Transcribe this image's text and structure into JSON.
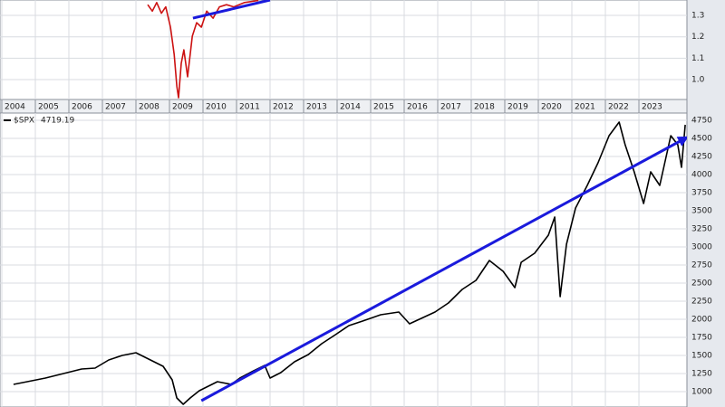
{
  "chart_data": [
    {
      "type": "line",
      "xlim": [
        2003.946,
        2024.432
      ],
      "xticks": [
        2004,
        2005,
        2006,
        2007,
        2008,
        2009,
        2010,
        2011,
        2012,
        2013,
        2014,
        2015,
        2016,
        2017,
        2018,
        2019,
        2020,
        2021,
        2022,
        2023
      ],
      "ylim": [
        0.907,
        1.372
      ],
      "yticks": [
        {
          "value": 1,
          "label": "1.0"
        },
        1.1,
        1.2,
        1.3
      ],
      "grid": true,
      "series": [
        {
          "color": "#cc1111",
          "x": [
            2008.35,
            2008.49,
            2008.62,
            2008.76,
            2008.89,
            2009.03,
            2009.14,
            2009.22,
            2009.27,
            2009.35,
            2009.43,
            2009.54,
            2009.68,
            2009.81,
            2009.95,
            2010.11,
            2010.3,
            2010.49,
            2010.7,
            2010.92,
            2011.24,
            2011.65
          ],
          "values": [
            1.35,
            1.32,
            1.36,
            1.31,
            1.34,
            1.245,
            1.118,
            0.97,
            0.915,
            1.076,
            1.139,
            1.013,
            1.203,
            1.266,
            1.245,
            1.32,
            1.287,
            1.34,
            1.35,
            1.34,
            1.36,
            1.37
          ]
        },
        {
          "color": "#1a1adc",
          "x": [
            2009.7,
            2012.0
          ],
          "values": [
            1.287,
            1.372
          ]
        }
      ]
    },
    {
      "type": "line",
      "ylim": [
        787.5,
        4850
      ],
      "yticks": [
        1000,
        1250,
        1500,
        1750,
        2000,
        2250,
        2500,
        2750,
        3000,
        3250,
        3500,
        3750,
        4000,
        4250,
        4500,
        4750
      ],
      "grid": true,
      "legend_name": "$SPX",
      "last_value": 4719.19,
      "series": [
        {
          "color": "#000000",
          "x": [
            2004.35,
            2004.76,
            2005.3,
            2005.84,
            2006.38,
            2006.78,
            2007.19,
            2007.59,
            2008.0,
            2008.27,
            2008.54,
            2008.81,
            2009.08,
            2009.22,
            2009.41,
            2009.62,
            2009.89,
            2010.16,
            2010.43,
            2010.84,
            2011.1,
            2011.51,
            2011.84,
            2012.0,
            2012.32,
            2012.73,
            2013.14,
            2013.54,
            2013.95,
            2014.35,
            2014.76,
            2015.3,
            2015.84,
            2016.16,
            2016.51,
            2016.92,
            2017.32,
            2017.73,
            2018.14,
            2018.54,
            2018.95,
            2019.3,
            2019.49,
            2019.89,
            2020.3,
            2020.49,
            2020.65,
            2020.84,
            2021.11,
            2021.46,
            2021.78,
            2022.11,
            2022.41,
            2022.59,
            2022.86,
            2023.14,
            2023.35,
            2023.62,
            2023.95,
            2024.16,
            2024.27,
            2024.38
          ],
          "values": [
            1100,
            1137,
            1187,
            1250,
            1312,
            1325,
            1437,
            1500,
            1537,
            1475,
            1412,
            1350,
            1162,
            912,
            825,
            912,
            1012,
            1075,
            1137,
            1100,
            1187,
            1287,
            1362,
            1187,
            1262,
            1412,
            1512,
            1662,
            1787,
            1912,
            1975,
            2062,
            2100,
            1937,
            2012,
            2100,
            2225,
            2412,
            2537,
            2812,
            2662,
            2437,
            2787,
            2912,
            3162,
            3412,
            2312,
            3037,
            3537,
            3850,
            4162,
            4537,
            4725,
            4412,
            4037,
            3600,
            4037,
            3850,
            4537,
            4412,
            4100,
            4687
          ]
        },
        {
          "color": "#1a1adc",
          "arrow": true,
          "x": [
            2009.95,
            2024.43
          ],
          "values": [
            875,
            4512
          ]
        }
      ]
    }
  ]
}
